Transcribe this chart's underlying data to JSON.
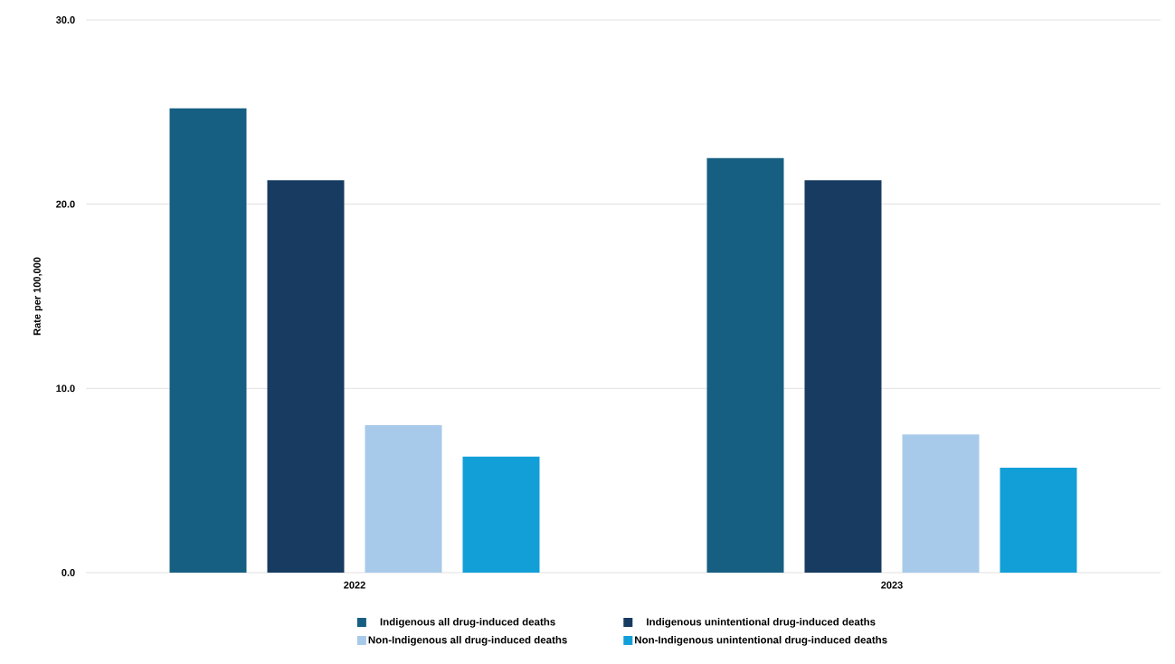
{
  "chart_data": {
    "type": "bar",
    "ylabel": "Rate per 100,000",
    "categories": [
      "2022",
      "2023"
    ],
    "series": [
      {
        "name": "Indigenous all drug-induced deaths",
        "color": "#175f82",
        "values": [
          25.2,
          22.5
        ]
      },
      {
        "name": "Indigenous unintentional drug-induced deaths",
        "color": "#173b61",
        "values": [
          21.3,
          21.3
        ]
      },
      {
        "name": "Non-Indigenous all drug-induced deaths",
        "color": "#a8caea",
        "values": [
          8.0,
          7.5
        ]
      },
      {
        "name": "Non-Indigenous unintentional drug-induced deaths",
        "color": "#129fd8",
        "values": [
          6.3,
          5.7
        ]
      }
    ],
    "ylim": [
      0,
      30
    ],
    "yticks": [
      {
        "value": 0,
        "label": "0.0"
      },
      {
        "value": 10,
        "label": "10.0"
      },
      {
        "value": 20,
        "label": "20.0"
      },
      {
        "value": 30,
        "label": "30.0"
      }
    ],
    "grid": "y",
    "legend": "bottom"
  }
}
